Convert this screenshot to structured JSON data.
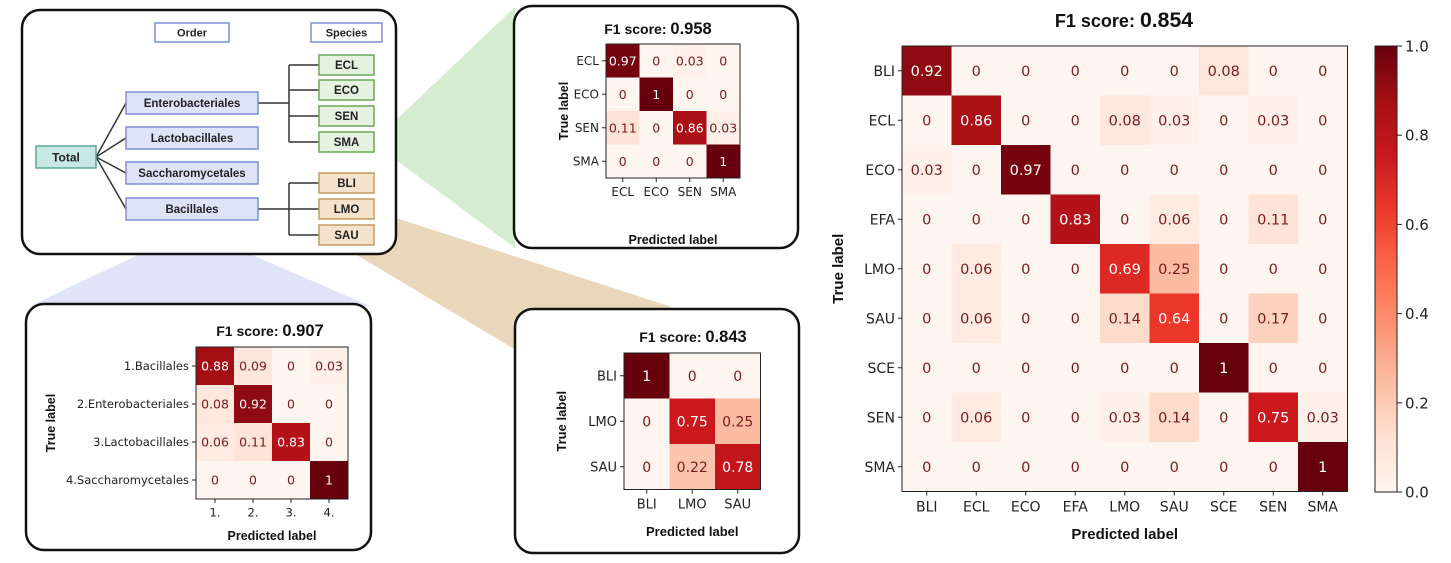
{
  "tree": {
    "order_header": "Order",
    "species_header": "Species",
    "root": "Total",
    "orders": [
      "Enterobacteriales",
      "Lactobacillales",
      "Saccharomycetales",
      "Bacillales"
    ],
    "entero_species": [
      "ECL",
      "ECO",
      "SEN",
      "SMA"
    ],
    "bacillales_species": [
      "BLI",
      "LMO",
      "SAU"
    ]
  },
  "colors": {
    "order_fill": "#dde3f8",
    "order_border": "#7b8fd6",
    "entero_fill": "#e4f2df",
    "entero_border": "#6aa95a",
    "bacill_fill": "#f4e2cc",
    "bacill_border": "#c39a63",
    "root_fill": "#c8e8e4",
    "root_border": "#5aa79c",
    "wedge_green": "#d6ecd1",
    "wedge_blue": "#dfe4f6",
    "wedge_tan": "#ead7bb",
    "cmap_low": "#fff5f0",
    "cmap_high": "#67000d"
  },
  "chart_data": [
    {
      "type": "heatmap",
      "title_prefix": "F1 score: ",
      "title_value": "0.958",
      "xlabel": "Predicted label",
      "ylabel": "True label",
      "x_categories": [
        "ECL",
        "ECO",
        "SEN",
        "SMA"
      ],
      "y_categories": [
        "ECL",
        "ECO",
        "SEN",
        "SMA"
      ],
      "values": [
        [
          0.97,
          0,
          0.03,
          0
        ],
        [
          0,
          1,
          0,
          0
        ],
        [
          0.11,
          0,
          0.86,
          0.03
        ],
        [
          0,
          0,
          0,
          1
        ]
      ],
      "labels": [
        [
          "0.97",
          "0",
          "0.03",
          "0"
        ],
        [
          "0",
          "1",
          "0",
          "0"
        ],
        [
          "0.11",
          "0",
          "0.86",
          "0.03"
        ],
        [
          "0",
          "0",
          "0",
          "1"
        ]
      ]
    },
    {
      "type": "heatmap",
      "title_prefix": "F1 score: ",
      "title_value": "0.907",
      "xlabel": "Predicted label",
      "ylabel": "True label",
      "x_categories": [
        "1.",
        "2.",
        "3.",
        "4."
      ],
      "y_categories": [
        "1.Bacillales",
        "2.Enterobacteriales",
        "3.Lactobacillales",
        "4.Saccharomycetales"
      ],
      "values": [
        [
          0.88,
          0.09,
          0,
          0.03
        ],
        [
          0.08,
          0.92,
          0,
          0
        ],
        [
          0.06,
          0.11,
          0.83,
          0
        ],
        [
          0,
          0,
          0,
          1
        ]
      ],
      "labels": [
        [
          "0.88",
          "0.09",
          "0",
          "0.03"
        ],
        [
          "0.08",
          "0.92",
          "0",
          "0"
        ],
        [
          "0.06",
          "0.11",
          "0.83",
          "0"
        ],
        [
          "0",
          "0",
          "0",
          "1"
        ]
      ]
    },
    {
      "type": "heatmap",
      "title_prefix": "F1 score: ",
      "title_value": "0.843",
      "xlabel": "Predicted label",
      "ylabel": "True label",
      "x_categories": [
        "BLI",
        "LMO",
        "SAU"
      ],
      "y_categories": [
        "BLI",
        "LMO",
        "SAU"
      ],
      "values": [
        [
          1,
          0,
          0
        ],
        [
          0,
          0.75,
          0.25
        ],
        [
          0,
          0.22,
          0.78
        ]
      ],
      "labels": [
        [
          "1",
          "0",
          "0"
        ],
        [
          "0",
          "0.75",
          "0.25"
        ],
        [
          "0",
          "0.22",
          "0.78"
        ]
      ]
    },
    {
      "type": "heatmap",
      "title_prefix": "F1 score: ",
      "title_value": "0.854",
      "xlabel": "Predicted label",
      "ylabel": "True label",
      "x_categories": [
        "BLI",
        "ECL",
        "ECO",
        "EFA",
        "LMO",
        "SAU",
        "SCE",
        "SEN",
        "SMA"
      ],
      "y_categories": [
        "BLI",
        "ECL",
        "ECO",
        "EFA",
        "LMO",
        "SAU",
        "SCE",
        "SEN",
        "SMA"
      ],
      "values": [
        [
          0.92,
          0,
          0,
          0,
          0,
          0,
          0.08,
          0,
          0
        ],
        [
          0,
          0.86,
          0,
          0,
          0.08,
          0.03,
          0,
          0.03,
          0
        ],
        [
          0.03,
          0,
          0.97,
          0,
          0,
          0,
          0,
          0,
          0
        ],
        [
          0,
          0,
          0,
          0.83,
          0,
          0.06,
          0,
          0.11,
          0
        ],
        [
          0,
          0.06,
          0,
          0,
          0.69,
          0.25,
          0,
          0,
          0
        ],
        [
          0,
          0.06,
          0,
          0,
          0.14,
          0.64,
          0,
          0.17,
          0
        ],
        [
          0,
          0,
          0,
          0,
          0,
          0,
          1,
          0,
          0
        ],
        [
          0,
          0.06,
          0,
          0,
          0.03,
          0.14,
          0,
          0.75,
          0.03
        ],
        [
          0,
          0,
          0,
          0,
          0,
          0,
          0,
          0,
          1
        ]
      ],
      "labels": [
        [
          "0.92",
          "0",
          "0",
          "0",
          "0",
          "0",
          "0.08",
          "0",
          "0"
        ],
        [
          "0",
          "0.86",
          "0",
          "0",
          "0.08",
          "0.03",
          "0",
          "0.03",
          "0"
        ],
        [
          "0.03",
          "0",
          "0.97",
          "0",
          "0",
          "0",
          "0",
          "0",
          "0"
        ],
        [
          "0",
          "0",
          "0",
          "0.83",
          "0",
          "0.06",
          "0",
          "0.11",
          "0"
        ],
        [
          "0",
          "0.06",
          "0",
          "0",
          "0.69",
          "0.25",
          "0",
          "0",
          "0"
        ],
        [
          "0",
          "0.06",
          "0",
          "0",
          "0.14",
          "0.64",
          "0",
          "0.17",
          "0"
        ],
        [
          "0",
          "0",
          "0",
          "0",
          "0",
          "0",
          "1",
          "0",
          "0"
        ],
        [
          "0",
          "0.06",
          "0",
          "0",
          "0.03",
          "0.14",
          "0",
          "0.75",
          "0.03"
        ],
        [
          "0",
          "0",
          "0",
          "0",
          "0",
          "0",
          "0",
          "0",
          "1"
        ]
      ],
      "colorbar": {
        "range": [
          0,
          1
        ],
        "ticks": [
          0.0,
          0.2,
          0.4,
          0.6,
          0.8,
          1.0
        ],
        "tick_labels": [
          "0.0",
          "0.2",
          "0.4",
          "0.6",
          "0.8",
          "1.0"
        ]
      }
    }
  ]
}
